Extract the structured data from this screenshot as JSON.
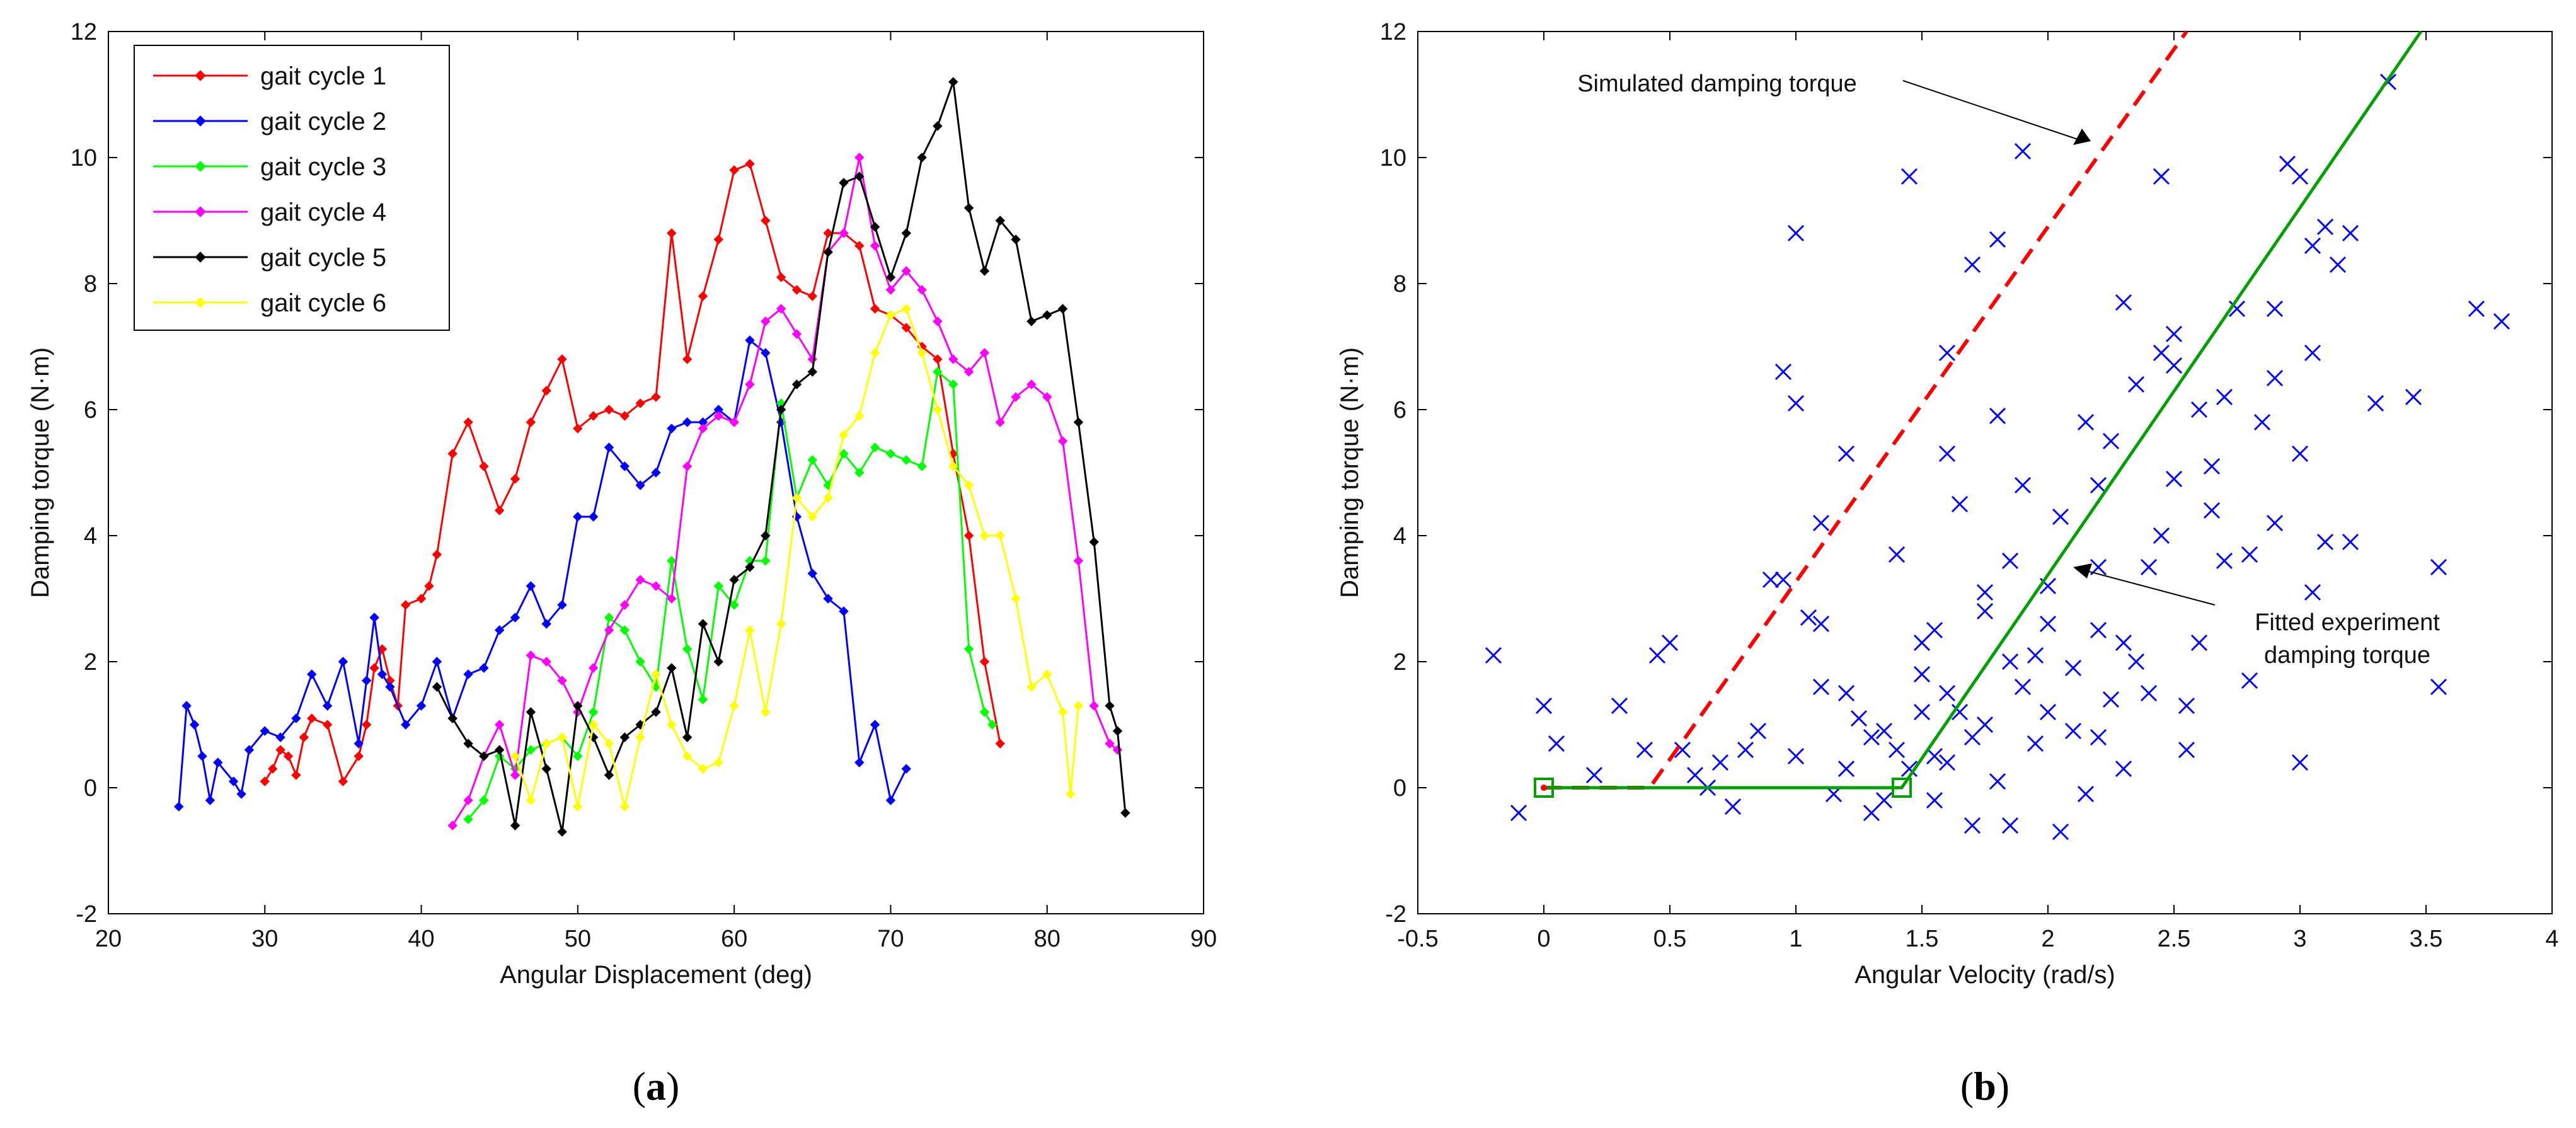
{
  "chart_data": [
    {
      "type": "line",
      "panel": "a",
      "caption_open": "(",
      "caption_letter": "a",
      "caption_close": ")",
      "xlabel": "Angular Displacement (deg)",
      "ylabel": "Damping torque (N·m)",
      "xlim": [
        20,
        90
      ],
      "ylim": [
        -2,
        12
      ],
      "xticks": [
        20,
        30,
        40,
        50,
        60,
        70,
        80,
        90
      ],
      "yticks": [
        -2,
        0,
        2,
        4,
        6,
        8,
        10,
        12
      ],
      "legend_position": "top-left",
      "series": [
        {
          "name": "gait cycle 1",
          "color": "#ff0000",
          "x": [
            30,
            30.5,
            31,
            31.5,
            32,
            32.5,
            33,
            34,
            35,
            36,
            36.5,
            37,
            37.5,
            38,
            38.5,
            39,
            40,
            40.5,
            41,
            42,
            43,
            44,
            45,
            46,
            47,
            48,
            49,
            50,
            51,
            52,
            53,
            54,
            55,
            56,
            57,
            58,
            59,
            60,
            61,
            62,
            63,
            64,
            65,
            66,
            67,
            68,
            69,
            70,
            71,
            72,
            73,
            74,
            75,
            76,
            77
          ],
          "y": [
            0.1,
            0.3,
            0.6,
            0.5,
            0.2,
            0.8,
            1.1,
            1.0,
            0.1,
            0.5,
            1.0,
            1.9,
            2.2,
            1.7,
            1.3,
            2.9,
            3.0,
            3.2,
            3.7,
            5.3,
            5.8,
            5.1,
            4.4,
            4.9,
            5.8,
            6.3,
            6.8,
            5.7,
            5.9,
            6.0,
            5.9,
            6.1,
            6.2,
            8.8,
            6.8,
            7.8,
            8.7,
            9.8,
            9.9,
            9.0,
            8.1,
            7.9,
            7.8,
            8.8,
            8.8,
            8.6,
            7.6,
            7.5,
            7.3,
            7.0,
            6.8,
            5.3,
            4.0,
            2.0,
            0.7
          ]
        },
        {
          "name": "gait cycle 2",
          "color": "#0000ff",
          "x": [
            24.5,
            25,
            25.5,
            26,
            26.5,
            27,
            28,
            28.5,
            29,
            30,
            31,
            32,
            33,
            34,
            35,
            36,
            36.5,
            37,
            37.5,
            38,
            39,
            40,
            41,
            42,
            43,
            44,
            45,
            46,
            47,
            48,
            49,
            50,
            51,
            52,
            53,
            54,
            55,
            56,
            57,
            58,
            59,
            60,
            61,
            62,
            63,
            64,
            65,
            66,
            67,
            68,
            69,
            70,
            71
          ],
          "y": [
            -0.3,
            1.3,
            1.0,
            0.5,
            -0.2,
            0.4,
            0.1,
            -0.1,
            0.6,
            0.9,
            0.8,
            1.1,
            1.8,
            1.3,
            2.0,
            0.7,
            1.7,
            2.7,
            1.8,
            1.6,
            1.0,
            1.3,
            2.0,
            1.1,
            1.8,
            1.9,
            2.5,
            2.7,
            3.2,
            2.6,
            2.9,
            4.3,
            4.3,
            5.4,
            5.1,
            4.8,
            5.0,
            5.7,
            5.8,
            5.8,
            6.0,
            5.8,
            7.1,
            6.9,
            5.8,
            4.3,
            3.4,
            3.0,
            2.8,
            0.4,
            1.0,
            -0.2,
            0.3
          ]
        },
        {
          "name": "gait cycle 3",
          "color": "#00ff00",
          "x": [
            43,
            44,
            45,
            46,
            47,
            48,
            49,
            50,
            51,
            52,
            53,
            54,
            55,
            56,
            57,
            58,
            59,
            60,
            61,
            62,
            63,
            64,
            65,
            66,
            67,
            68,
            69,
            70,
            71,
            72,
            73,
            74,
            75,
            76,
            76.5
          ],
          "y": [
            -0.5,
            -0.2,
            0.5,
            0.3,
            0.6,
            0.7,
            0.8,
            0.5,
            1.2,
            2.7,
            2.5,
            2.0,
            1.6,
            3.6,
            2.2,
            1.4,
            3.2,
            2.9,
            3.6,
            3.6,
            6.1,
            4.6,
            5.2,
            4.8,
            5.3,
            5.0,
            5.4,
            5.3,
            5.2,
            5.1,
            6.6,
            6.4,
            2.2,
            1.2,
            1.0
          ]
        },
        {
          "name": "gait cycle 4",
          "color": "#ff00ff",
          "x": [
            42,
            43,
            44,
            45,
            46,
            47,
            48,
            49,
            50,
            51,
            52,
            53,
            54,
            55,
            56,
            57,
            58,
            59,
            60,
            61,
            62,
            63,
            64,
            65,
            66,
            67,
            68,
            69,
            70,
            71,
            72,
            73,
            74,
            75,
            76,
            77,
            78,
            79,
            80,
            81,
            82,
            83,
            84,
            84.5
          ],
          "y": [
            -0.6,
            -0.2,
            0.5,
            1.0,
            0.2,
            2.1,
            2.0,
            1.7,
            1.2,
            1.9,
            2.5,
            2.9,
            3.3,
            3.2,
            3.0,
            5.1,
            5.7,
            5.9,
            5.8,
            6.4,
            7.4,
            7.6,
            7.2,
            6.8,
            8.5,
            8.8,
            10.0,
            8.6,
            7.9,
            8.2,
            7.9,
            7.4,
            6.8,
            6.6,
            6.9,
            5.8,
            6.2,
            6.4,
            6.2,
            5.5,
            3.6,
            1.3,
            0.7,
            0.6
          ]
        },
        {
          "name": "gait cycle 5",
          "color": "#000000",
          "x": [
            41,
            42,
            43,
            44,
            45,
            46,
            47,
            48,
            49,
            50,
            51,
            52,
            53,
            54,
            55,
            56,
            57,
            58,
            59,
            60,
            61,
            62,
            63,
            64,
            65,
            66,
            67,
            68,
            69,
            70,
            71,
            72,
            73,
            74,
            75,
            76,
            77,
            78,
            79,
            80,
            81,
            82,
            83,
            84,
            84.5,
            85
          ],
          "y": [
            1.6,
            1.1,
            0.7,
            0.5,
            0.6,
            -0.6,
            1.2,
            0.3,
            -0.7,
            1.3,
            0.8,
            0.2,
            0.8,
            1.0,
            1.2,
            1.9,
            0.8,
            2.6,
            2.0,
            3.3,
            3.5,
            4.0,
            6.0,
            6.4,
            6.6,
            8.5,
            9.6,
            9.7,
            8.9,
            8.1,
            8.8,
            10.0,
            10.5,
            11.2,
            9.2,
            8.2,
            9.0,
            8.7,
            7.4,
            7.5,
            7.6,
            5.8,
            3.9,
            1.3,
            0.9,
            -0.4
          ]
        },
        {
          "name": "gait cycle 6",
          "color": "#ffff00",
          "x": [
            46,
            47,
            48,
            49,
            50,
            51,
            52,
            53,
            54,
            55,
            56,
            57,
            58,
            59,
            60,
            61,
            62,
            63,
            64,
            65,
            66,
            67,
            68,
            69,
            70,
            71,
            72,
            73,
            74,
            75,
            76,
            77,
            78,
            79,
            80,
            81,
            81.5,
            82
          ],
          "y": [
            0.5,
            -0.2,
            0.7,
            0.8,
            -0.3,
            1.0,
            0.7,
            -0.3,
            0.8,
            1.8,
            1.0,
            0.5,
            0.3,
            0.4,
            1.3,
            2.5,
            1.2,
            2.6,
            4.6,
            4.3,
            4.6,
            5.6,
            5.9,
            6.9,
            7.5,
            7.6,
            6.9,
            6.0,
            5.1,
            4.8,
            4.0,
            4.0,
            3.0,
            1.6,
            1.8,
            1.2,
            -0.1,
            1.3
          ]
        }
      ]
    },
    {
      "type": "scatter",
      "panel": "b",
      "caption_open": "(",
      "caption_letter": "b",
      "caption_close": ")",
      "xlabel": "Angular Velocity (rad/s)",
      "ylabel": "Damping torque (N·m)",
      "xlim": [
        -0.5,
        4
      ],
      "ylim": [
        -2,
        12
      ],
      "xticks": [
        -0.5,
        0,
        0.5,
        1,
        1.5,
        2,
        2.5,
        3,
        3.5,
        4
      ],
      "yticks": [
        -2,
        0,
        2,
        4,
        6,
        8,
        10,
        12
      ],
      "scatter_color": "#0000ff",
      "points": [
        [
          -0.2,
          2.1
        ],
        [
          -0.1,
          -0.4
        ],
        [
          0,
          1.3
        ],
        [
          0.05,
          0.7
        ],
        [
          0.2,
          0.2
        ],
        [
          0.3,
          1.3
        ],
        [
          0.4,
          0.6
        ],
        [
          0.45,
          2.1
        ],
        [
          0.5,
          2.3
        ],
        [
          0.55,
          0.6
        ],
        [
          0.6,
          0.2
        ],
        [
          0.7,
          0.4
        ],
        [
          0.8,
          0.6
        ],
        [
          0.85,
          0.9
        ],
        [
          0.9,
          3.3
        ],
        [
          0.95,
          3.3
        ],
        [
          0.95,
          6.6
        ],
        [
          1.0,
          6.1
        ],
        [
          1.0,
          8.8
        ],
        [
          1.05,
          2.7
        ],
        [
          1.1,
          1.6
        ],
        [
          1.1,
          2.6
        ],
        [
          1.2,
          1.5
        ],
        [
          1.2,
          5.3
        ],
        [
          1.3,
          0.8
        ],
        [
          1.35,
          -0.2
        ],
        [
          1.4,
          3.7
        ],
        [
          1.45,
          9.7
        ],
        [
          1.5,
          1.2
        ],
        [
          1.55,
          0.5
        ],
        [
          1.55,
          2.5
        ],
        [
          1.6,
          5.3
        ],
        [
          1.6,
          6.9
        ],
        [
          1.65,
          4.5
        ],
        [
          1.7,
          0.8
        ],
        [
          1.7,
          8.3
        ],
        [
          1.75,
          3.1
        ],
        [
          1.8,
          5.9
        ],
        [
          1.8,
          8.7
        ],
        [
          1.85,
          2.0
        ],
        [
          1.9,
          10.1
        ],
        [
          1.9,
          4.8
        ],
        [
          2.0,
          1.2
        ],
        [
          2.0,
          3.2
        ],
        [
          2.05,
          -0.7
        ],
        [
          2.1,
          1.9
        ],
        [
          2.15,
          5.8
        ],
        [
          2.2,
          0.8
        ],
        [
          2.2,
          3.5
        ],
        [
          2.25,
          5.5
        ],
        [
          2.3,
          7.7
        ],
        [
          2.3,
          2.3
        ],
        [
          2.35,
          6.4
        ],
        [
          2.4,
          1.5
        ],
        [
          2.45,
          9.7
        ],
        [
          2.45,
          6.9
        ],
        [
          2.5,
          4.9
        ],
        [
          2.5,
          7.2
        ],
        [
          2.55,
          0.6
        ],
        [
          2.6,
          6.0
        ],
        [
          2.65,
          4.4
        ],
        [
          2.7,
          6.2
        ],
        [
          2.75,
          7.6
        ],
        [
          2.8,
          1.7
        ],
        [
          2.8,
          3.7
        ],
        [
          2.85,
          5.8
        ],
        [
          2.9,
          6.5
        ],
        [
          2.95,
          9.9
        ],
        [
          3.0,
          9.7
        ],
        [
          3.0,
          0.4
        ],
        [
          3.05,
          3.1
        ],
        [
          3.05,
          8.6
        ],
        [
          3.1,
          8.9
        ],
        [
          3.1,
          3.9
        ],
        [
          3.15,
          8.3
        ],
        [
          3.2,
          3.9
        ],
        [
          3.3,
          6.1
        ],
        [
          3.35,
          11.2
        ],
        [
          3.45,
          6.2
        ],
        [
          3.55,
          1.6
        ],
        [
          3.55,
          3.5
        ],
        [
          3.7,
          7.6
        ],
        [
          3.8,
          7.4
        ],
        [
          1.2,
          0.3
        ],
        [
          1.3,
          -0.4
        ],
        [
          1.4,
          0.6
        ],
        [
          1.45,
          0.3
        ],
        [
          1.5,
          1.8
        ],
        [
          1.55,
          -0.2
        ],
        [
          1.6,
          0.4
        ],
        [
          1.65,
          1.2
        ],
        [
          1.7,
          -0.6
        ],
        [
          1.75,
          1.0
        ],
        [
          1.8,
          0.1
        ],
        [
          1.85,
          -0.6
        ],
        [
          1.9,
          1.6
        ],
        [
          1.95,
          0.7
        ],
        [
          2.0,
          2.6
        ],
        [
          2.1,
          0.9
        ],
        [
          2.15,
          -0.1
        ],
        [
          2.2,
          2.5
        ],
        [
          2.25,
          1.4
        ],
        [
          2.3,
          0.3
        ],
        [
          2.35,
          2.0
        ],
        [
          2.4,
          3.5
        ],
        [
          2.55,
          1.3
        ],
        [
          2.6,
          2.3
        ],
        [
          2.7,
          3.6
        ],
        [
          2.9,
          4.2
        ],
        [
          3.0,
          5.3
        ],
        [
          1.1,
          4.2
        ],
        [
          0.65,
          0.0
        ],
        [
          0.75,
          -0.3
        ],
        [
          1.0,
          0.5
        ],
        [
          1.15,
          -0.1
        ],
        [
          1.25,
          1.1
        ],
        [
          1.35,
          0.9
        ],
        [
          1.5,
          2.3
        ],
        [
          1.6,
          1.5
        ],
        [
          1.75,
          2.8
        ],
        [
          1.85,
          3.6
        ],
        [
          1.95,
          2.1
        ],
        [
          2.05,
          4.3
        ],
        [
          2.2,
          4.8
        ],
        [
          2.45,
          4.0
        ],
        [
          2.5,
          6.7
        ],
        [
          2.65,
          5.1
        ],
        [
          2.9,
          7.6
        ],
        [
          3.05,
          6.9
        ],
        [
          3.2,
          8.8
        ]
      ],
      "simulated_line": {
        "name": "Simulated damping torque",
        "color": "#ff0000",
        "x": [
          0,
          0.42,
          2.55
        ],
        "y": [
          0,
          0,
          12
        ]
      },
      "fitted_line": {
        "name": "Fitted experiment damping torque",
        "color": "#00a000",
        "x": [
          0,
          1.42,
          3.48
        ],
        "y": [
          0,
          0,
          12
        ]
      },
      "annotations": {
        "simulated_label": "Simulated damping torque",
        "simulated_tip": [
          2.1,
          10.2
        ],
        "fitted_label_line1": "Fitted experiment",
        "fitted_label_line2": "damping torque",
        "fitted_tip": [
          2.1,
          3.5
        ]
      }
    }
  ]
}
